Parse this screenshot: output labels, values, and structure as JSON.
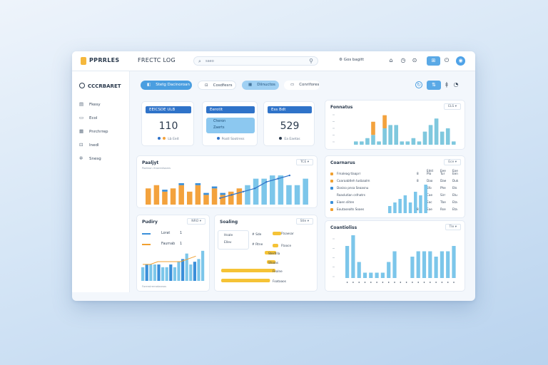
{
  "app": {
    "name": "PPRRLES",
    "page_title": "FRECTC LOG"
  },
  "search": {
    "placeholder": "saeo"
  },
  "topbar": {
    "link_label": "Gos bagitt"
  },
  "sidebar": {
    "heading": "CCCRBARET",
    "items": [
      {
        "label": "Fkesy",
        "icon": "dashboard-icon"
      },
      {
        "label": "Ecol",
        "icon": "document-icon"
      },
      {
        "label": "Pnrchrrep",
        "icon": "calendar-icon"
      },
      {
        "label": "Inedl",
        "icon": "lock-icon"
      },
      {
        "label": "Snesg",
        "icon": "settings-icon"
      }
    ]
  },
  "filters": [
    {
      "label": "Stetg  Dacinoroan",
      "icon": "tag-icon",
      "active": true
    },
    {
      "label": "Cosdfesrs",
      "icon": "lock-icon",
      "active": false
    },
    {
      "label": "Diinuctos",
      "icon": "grid-icon",
      "active": true
    },
    {
      "label": "Conrifores",
      "icon": "document-icon",
      "active": false
    }
  ],
  "kpi": [
    {
      "header": "EEICSDE ULB",
      "value": "110",
      "sub": "Lb  Eeit"
    },
    {
      "header": "Eerotlt",
      "value": "",
      "sub": "Poatl   Sootress",
      "lines": [
        "Cheron",
        "Zaerts"
      ]
    },
    {
      "header": "Ess Bdt",
      "value": "529",
      "sub": "Ea   Eaetas"
    }
  ],
  "panels": {
    "fonnatus_title": "Fonnatus",
    "fonnatus_ctrl": "ELS",
    "paaljyt_title": "Paaljyt",
    "paaljyt_ctrl": "TCE",
    "paaljyt_sub": "Poatnon rtnorentsaars",
    "coarnarus_title": "Coarnarus",
    "coarnarus_ctrl": "Ece",
    "coarnarus_cols": [
      "Tssaptgrus",
      "Edst",
      "Eee",
      "Eoe"
    ],
    "coarnarus_rows": [
      {
        "label": "Fmaleag tlaaprr",
        "icon": "warning-icon",
        "c1": "8",
        "c2": "Plo",
        "c3": "Tur",
        "c4": "Een"
      },
      {
        "label": "Coaraabtleh tusbaalm",
        "icon": "warning-icon",
        "c1": "8",
        "c2": "Dao",
        "c3": "Dae",
        "c4": "Duk"
      },
      {
        "label": "Dosiso pnsa Seaasnu",
        "icon": "info-icon",
        "c1": "",
        "c2": "Sfo",
        "c3": "Phe",
        "c4": "Ets"
      },
      {
        "label": "Roaslutian csfnatrs",
        "icon": "",
        "c1": "",
        "c2": "Cae",
        "c3": "Sirr",
        "c4": "Etu"
      },
      {
        "label": "Eiaen sliten",
        "icon": "info-icon",
        "c1": "",
        "c2": "Eac",
        "c3": "Tbe",
        "c4": "Eta"
      },
      {
        "label": "Eoutasealts Soaes",
        "icon": "warning-icon",
        "c1": "8",
        "c2": "Eae",
        "c3": "Rse",
        "c4": "Eta"
      }
    ],
    "pudiry_title": "Pudiry",
    "pudiry_ctrl": "NRO",
    "pudiry_legend": [
      {
        "label": "Lorat",
        "value": "1",
        "color": "#3a8fd9"
      },
      {
        "label": "Faurnab",
        "value": "1",
        "color": "#f0a030"
      }
    ],
    "pudiry_sub": "Foreroirerrodaanos",
    "soaling_title": "Soaling",
    "soaling_ctrl": "Stle",
    "soaling_left": [
      "Hsale",
      "Ellev"
    ],
    "soaling_nums": [
      "#   Sde",
      "#   Rtne"
    ],
    "soaling_labels": [
      "Ftsaesar",
      "Ftooce",
      "Stertilla",
      "Sfoaas",
      "Fealne",
      "Foataaos"
    ],
    "coantioliss_title": "Coantioliss",
    "coantioliss_ctrl": "Tle"
  },
  "chart_data": [
    {
      "type": "bar",
      "title": "Fonnatus",
      "series": [
        {
          "color": "#7fc8de",
          "values": [
            1,
            1,
            2,
            3,
            1,
            5,
            6,
            6,
            1,
            1,
            2,
            1,
            4,
            6,
            8,
            4,
            5,
            1
          ]
        },
        {
          "color": "#f3a23d",
          "values": [
            0,
            0,
            0,
            4,
            0,
            4,
            0,
            0,
            0,
            0,
            0,
            0,
            0,
            0,
            0,
            0,
            0,
            0
          ]
        }
      ],
      "ylim": [
        0,
        10
      ]
    },
    {
      "type": "bar",
      "title": "Paaljyt",
      "series": [
        {
          "color": "#f3a23d",
          "values": [
            5,
            6,
            4,
            5,
            6,
            4,
            6,
            3,
            5,
            3,
            4,
            5,
            6,
            8,
            8,
            9,
            9,
            6,
            6,
            8
          ]
        },
        {
          "color": "#3a8fd9",
          "values": [
            0,
            0,
            1,
            0,
            1,
            0,
            1,
            1,
            1,
            1,
            0,
            0,
            0,
            0,
            0,
            0,
            0,
            0,
            0,
            0
          ]
        }
      ],
      "line": [
        2,
        3,
        4,
        5,
        7,
        8,
        9
      ],
      "ylim": [
        0,
        11
      ]
    },
    {
      "type": "bar",
      "title": "Coarnarus",
      "values": [
        2,
        3,
        4,
        5,
        3,
        6,
        5,
        8
      ],
      "ylim": [
        0,
        10
      ]
    },
    {
      "type": "bar",
      "title": "Pudiry",
      "values": [
        5,
        6,
        6,
        6,
        6,
        5,
        5,
        6,
        5,
        7,
        8,
        10,
        6,
        7,
        8,
        11
      ],
      "line": [
        5,
        5,
        6,
        6,
        6,
        6,
        7,
        8
      ],
      "ylim": [
        0,
        12
      ]
    },
    {
      "type": "bar",
      "title": "Soaling",
      "orientation": "horizontal",
      "values": [
        3,
        2,
        4,
        3,
        10,
        9
      ],
      "ylim": [
        0,
        10
      ]
    },
    {
      "type": "bar",
      "title": "Coantioliss",
      "values": [
        6,
        8,
        3,
        1,
        1,
        1,
        1,
        3,
        5,
        0,
        0,
        4,
        5,
        5,
        5,
        4,
        5,
        5,
        6
      ],
      "ylim": [
        0,
        8
      ]
    }
  ]
}
